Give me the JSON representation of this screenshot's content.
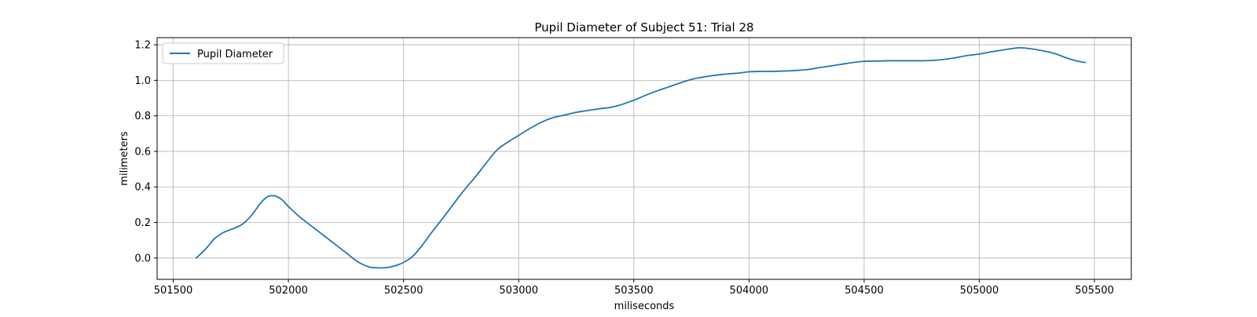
{
  "chart_data": {
    "type": "line",
    "title": "Pupil Diameter of Subject 51: Trial 28",
    "xlabel": "miliseconds",
    "ylabel": "milimeters",
    "xlim": [
      501430,
      505660
    ],
    "ylim": [
      -0.12,
      1.24
    ],
    "xticks": [
      501500,
      502000,
      502500,
      503000,
      503500,
      504000,
      504500,
      505000,
      505500
    ],
    "yticks": [
      0.0,
      0.2,
      0.4,
      0.6,
      0.8,
      1.0,
      1.2
    ],
    "xtick_labels": [
      "501500",
      "502000",
      "502500",
      "503000",
      "503500",
      "504000",
      "504500",
      "505000",
      "505500"
    ],
    "ytick_labels": [
      "0.0",
      "0.2",
      "0.4",
      "0.6",
      "0.8",
      "1.0",
      "1.2"
    ],
    "grid": true,
    "legend_position": "top-left",
    "series": [
      {
        "name": "Pupil Diameter",
        "color": "#1f77b4",
        "x": [
          501600,
          501640,
          501680,
          501720,
          501760,
          501800,
          501840,
          501880,
          501910,
          501940,
          501970,
          502000,
          502050,
          502100,
          502150,
          502200,
          502250,
          502300,
          502350,
          502380,
          502420,
          502460,
          502500,
          502540,
          502580,
          502620,
          502680,
          502750,
          502820,
          502900,
          502950,
          503000,
          503050,
          503100,
          503150,
          503200,
          503250,
          503300,
          503350,
          503400,
          503450,
          503500,
          503550,
          503600,
          503650,
          503700,
          503750,
          503800,
          503850,
          503900,
          503950,
          504000,
          504050,
          504100,
          504150,
          504200,
          504250,
          504300,
          504350,
          504400,
          504450,
          504500,
          504550,
          504600,
          504650,
          504700,
          504750,
          504800,
          504850,
          504900,
          504950,
          505000,
          505050,
          505100,
          505150,
          505180,
          505220,
          505260,
          505300,
          505340,
          505380,
          505420,
          505460
        ],
        "y": [
          0.0,
          0.05,
          0.11,
          0.145,
          0.165,
          0.19,
          0.24,
          0.31,
          0.345,
          0.35,
          0.33,
          0.29,
          0.23,
          0.18,
          0.13,
          0.08,
          0.03,
          -0.02,
          -0.05,
          -0.055,
          -0.055,
          -0.045,
          -0.025,
          0.01,
          0.07,
          0.14,
          0.24,
          0.36,
          0.47,
          0.6,
          0.65,
          0.69,
          0.73,
          0.765,
          0.79,
          0.805,
          0.82,
          0.83,
          0.84,
          0.848,
          0.865,
          0.888,
          0.915,
          0.94,
          0.962,
          0.985,
          1.005,
          1.018,
          1.028,
          1.035,
          1.04,
          1.048,
          1.05,
          1.05,
          1.052,
          1.055,
          1.06,
          1.07,
          1.08,
          1.09,
          1.1,
          1.107,
          1.108,
          1.11,
          1.11,
          1.11,
          1.11,
          1.112,
          1.118,
          1.128,
          1.14,
          1.148,
          1.16,
          1.17,
          1.18,
          1.183,
          1.178,
          1.17,
          1.16,
          1.145,
          1.125,
          1.11,
          1.1
        ]
      }
    ]
  }
}
